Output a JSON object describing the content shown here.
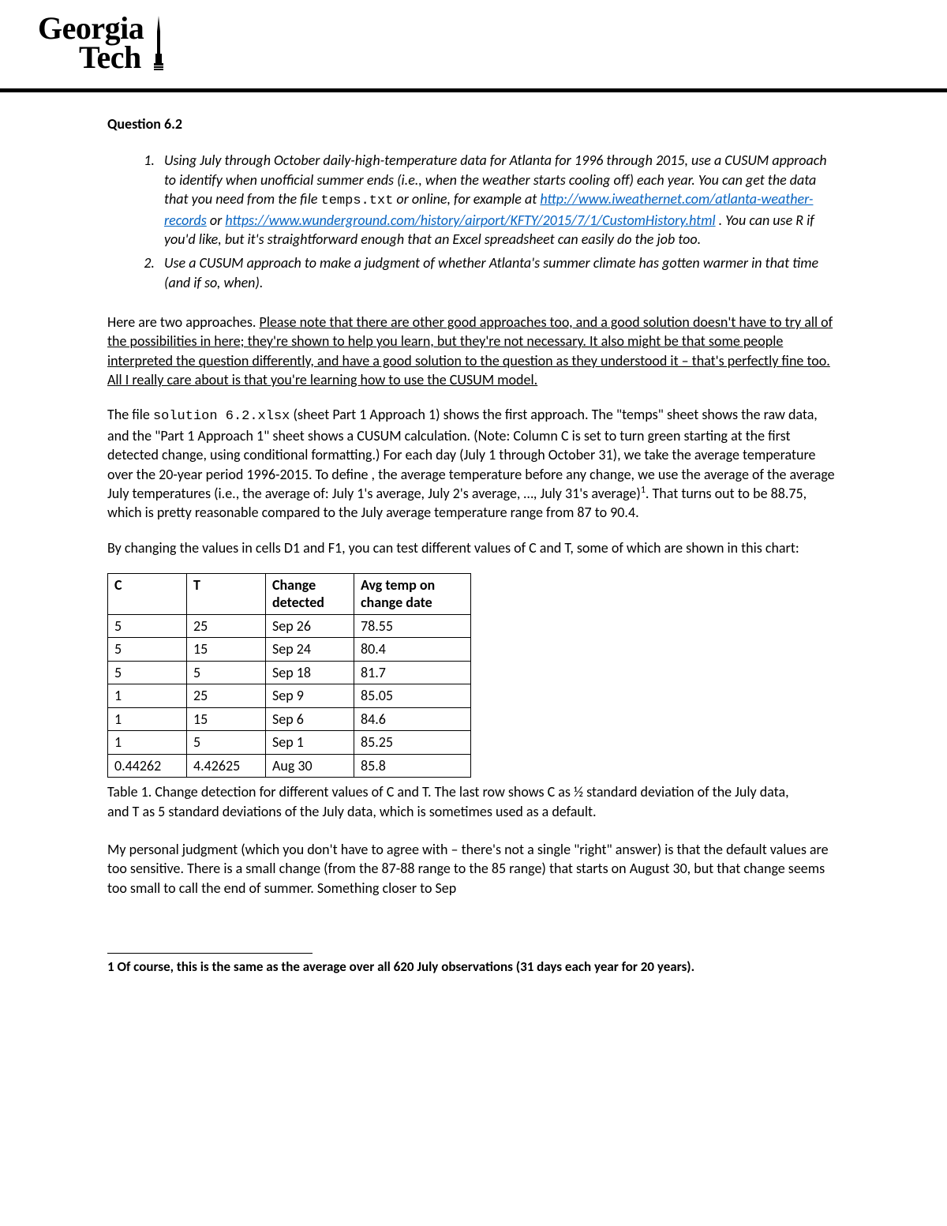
{
  "logo": {
    "line1": "Georgia",
    "line2": "Tech"
  },
  "question_title": "Question 6.2",
  "items": {
    "1": {
      "pre": "Using July through October daily-high-temperature data for Atlanta for 1996 through 2015, use a CUSUM approach to identify when unofficial summer ends (i.e., when the weather starts cooling off) each year. You can get the data that you need from the file ",
      "file": "temps.txt",
      "mid1": " or online, for example at ",
      "link1": "http://www.iweathernet.com/atlanta-weather-records",
      "mid2": "  or ",
      "link2": "https://www.wunderground.com/history/airport/KFTY/2015/7/1/CustomHistory.html",
      "post": " .  You can use R if you'd like, but it's straightforward enough that an Excel spreadsheet can easily do the job too."
    },
    "2": "Use a CUSUM approach to make a judgment of whether Atlanta's summer climate has gotten warmer in that time (and if so, when)."
  },
  "p1": {
    "a": "Here are two approaches.  ",
    "u": "Please note that there are other good approaches too, and a good solution doesn't have to try all of the possibilities in here; they're shown to help you learn, but they're not necessary.  It also might be that  some people interpreted the question differently, and have a good solution to the question as they understood it – that's perfectly fine too.  All I really care about is that you're learning how to use the CUSUM model."
  },
  "p2": {
    "a": "The file ",
    "f": "solution 6.2.xlsx",
    "b": " (sheet Part 1 Approach 1) shows the first approach.  The \"temps\" sheet shows the raw data, and the \"Part 1 Approach 1\" sheet shows a CUSUM calculation.  (Note: Column C is set to turn green starting at the first detected change, using conditional formatting.)  For each day (July 1 through October 31), we take the average temperature over the 20-year period 1996-2015.  To define , the average temperature before any change, we use the average of the average July temperatures (i.e., the average of: July 1's average, July 2's average, …, July 31's average)",
    "c": ".  That turns out to be 88.75, which is pretty reasonable compared to the July average temperature range from 87 to 90.4."
  },
  "p3": "By changing the values in cells D1 and F1, you can test different values of C and T, some of which are shown in this chart:",
  "table": {
    "headers": [
      "C",
      "T",
      "Change detected",
      "Avg temp on change date"
    ],
    "rows": [
      [
        "5",
        "25",
        "Sep 26",
        "78.55"
      ],
      [
        "5",
        "15",
        "Sep 24",
        "80.4"
      ],
      [
        "5",
        "5",
        "Sep 18",
        "81.7"
      ],
      [
        "1",
        "25",
        "Sep 9",
        "85.05"
      ],
      [
        "1",
        "15",
        "Sep 6",
        "84.6"
      ],
      [
        "1",
        "5",
        "Sep 1",
        "85.25"
      ],
      [
        "0.44262",
        "4.42625",
        "Aug 30",
        "85.8"
      ]
    ]
  },
  "caption": "Table 1. Change detection for different values of C and T.  The last row shows C as ½ standard deviation of the July data, and T as 5 standard deviations of the July data, which is sometimes used as a default.",
  "p4": "My personal judgment (which you don't have to agree with – there's not a single \"right\" answer) is that the default values are too sensitive.  There is a small change (from the 87-88 range to the 85 range) that starts on August 30, but that change seems too small to call the end of summer.  Something closer to Sep",
  "footnote": "1 Of course, this is the same as the average over all 620 July observations (31 days each year for 20 years)."
}
